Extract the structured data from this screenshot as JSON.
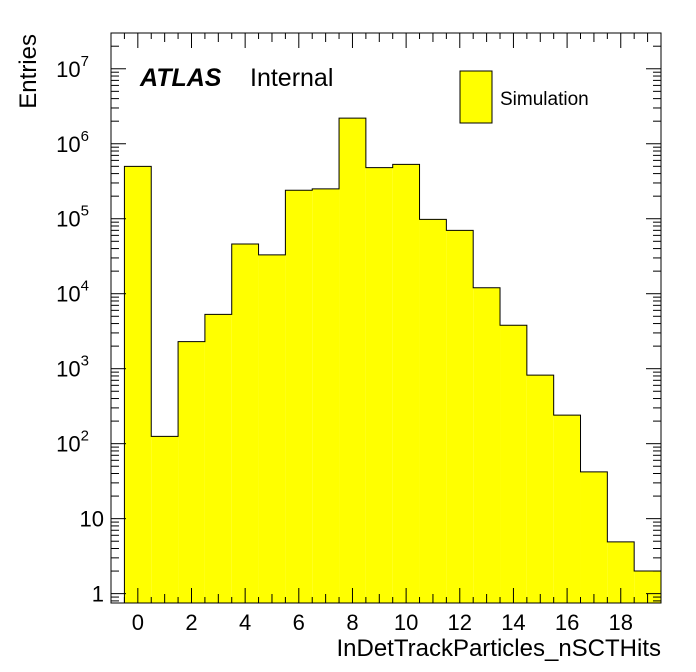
{
  "chart_data": {
    "type": "bar",
    "xlabel": "InDetTrackParticles_nSCTHits",
    "ylabel": "Entries",
    "yscale": "log",
    "xlim": [
      -1,
      19.5
    ],
    "ylim": [
      0.75,
      30000000
    ],
    "bar_color": "#ffff00",
    "edge_color": "#000000",
    "atlas_label": "ATLAS",
    "atlas_status": "Internal",
    "series": [
      {
        "name": "Simulation",
        "bins": [
          {
            "x": 0,
            "value": 500000
          },
          {
            "x": 1,
            "value": 125
          },
          {
            "x": 2,
            "value": 2300
          },
          {
            "x": 3,
            "value": 5300
          },
          {
            "x": 4,
            "value": 46000
          },
          {
            "x": 5,
            "value": 33000
          },
          {
            "x": 6,
            "value": 240000
          },
          {
            "x": 7,
            "value": 250000
          },
          {
            "x": 8,
            "value": 2200000
          },
          {
            "x": 9,
            "value": 480000
          },
          {
            "x": 10,
            "value": 530000
          },
          {
            "x": 11,
            "value": 98000
          },
          {
            "x": 12,
            "value": 70000
          },
          {
            "x": 13,
            "value": 12000
          },
          {
            "x": 14,
            "value": 3800
          },
          {
            "x": 15,
            "value": 820
          },
          {
            "x": 16,
            "value": 240
          },
          {
            "x": 17,
            "value": 42
          },
          {
            "x": 18,
            "value": 4.9
          },
          {
            "x": 19,
            "value": 2
          }
        ]
      }
    ],
    "x_tick_labels": [
      "0",
      "2",
      "4",
      "6",
      "8",
      "10",
      "12",
      "14",
      "16",
      "18"
    ],
    "y_tick_labels": [
      {
        "value": 1,
        "base": "1",
        "exp": ""
      },
      {
        "value": 10,
        "base": "10",
        "exp": ""
      },
      {
        "value": 100,
        "base": "10",
        "exp": "2"
      },
      {
        "value": 1000,
        "base": "10",
        "exp": "3"
      },
      {
        "value": 10000,
        "base": "10",
        "exp": "4"
      },
      {
        "value": 100000,
        "base": "10",
        "exp": "5"
      },
      {
        "value": 1000000,
        "base": "10",
        "exp": "6"
      },
      {
        "value": 10000000,
        "base": "10",
        "exp": "7"
      }
    ]
  }
}
